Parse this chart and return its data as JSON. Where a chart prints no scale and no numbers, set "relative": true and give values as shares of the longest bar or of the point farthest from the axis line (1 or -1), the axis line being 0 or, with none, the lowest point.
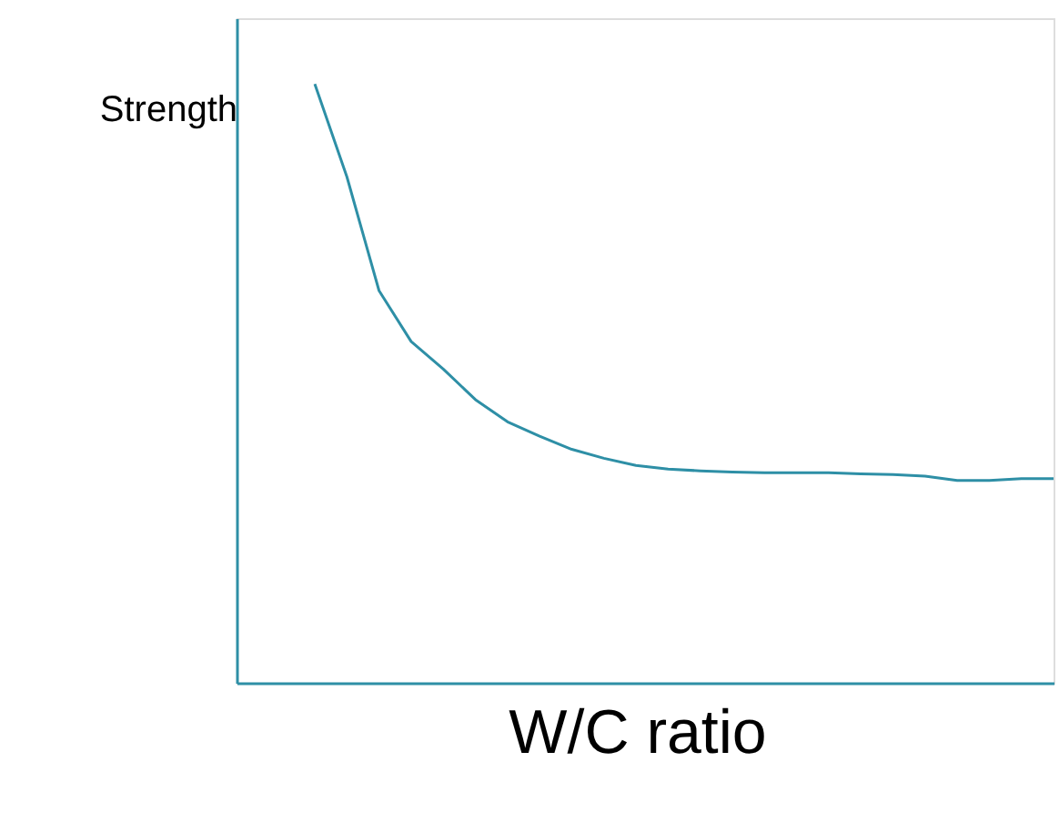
{
  "chart_data": {
    "type": "line",
    "relative": true,
    "xlabel": "W/C ratio",
    "ylabel": "Strength",
    "color": "#2e8fa6",
    "grid": false,
    "marker": "none",
    "line_style": "solid",
    "categories": [
      null,
      null,
      null,
      null,
      null,
      null,
      null,
      null,
      null,
      null,
      null,
      null,
      null,
      null,
      null,
      null,
      null,
      null,
      null,
      null,
      null,
      null,
      null,
      null
    ],
    "values": [
      1.0,
      0.845,
      0.655,
      0.57,
      0.524,
      0.473,
      0.436,
      0.412,
      0.39,
      0.375,
      0.363,
      0.357,
      0.354,
      0.352,
      0.351,
      0.351,
      0.351,
      0.349,
      0.348,
      0.345,
      0.338,
      0.338,
      0.341,
      0.341
    ]
  }
}
